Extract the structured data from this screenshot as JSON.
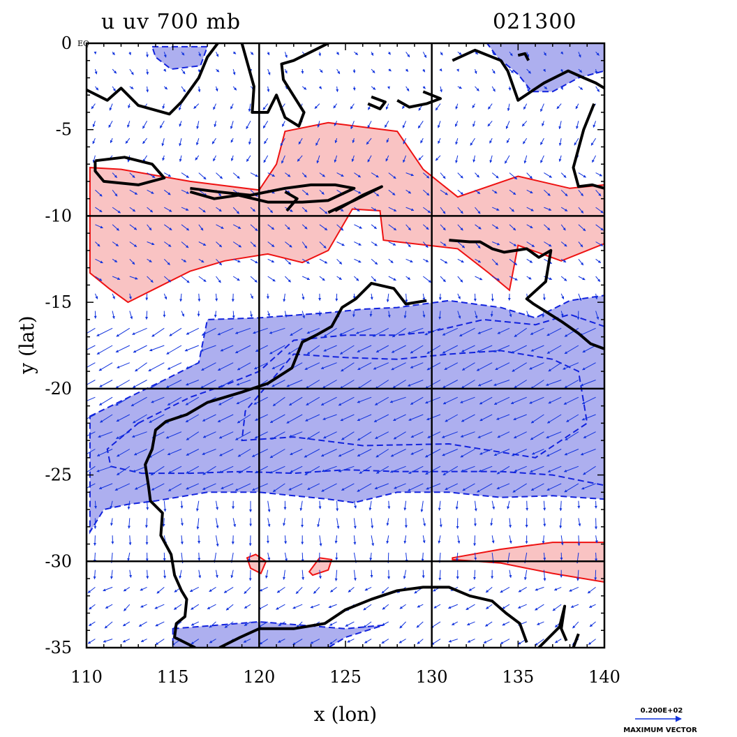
{
  "header": {
    "title_left": "u uv 700 mb",
    "title_right": "021300"
  },
  "axes": {
    "xlabel": "x (lon)",
    "ylabel": "y (lat)",
    "x_ticks": [
      "110",
      "115",
      "120",
      "125",
      "130",
      "135",
      "140"
    ],
    "y_ticks": [
      "0",
      "-5",
      "-10",
      "-15",
      "-20",
      "-25",
      "-30",
      "-35"
    ],
    "y_tick_suffix": "EQ",
    "x_range": [
      110,
      140
    ],
    "y_range": [
      -35,
      0
    ],
    "grid_lon": [
      120,
      130
    ],
    "grid_lat": [
      -10,
      -20,
      -30
    ]
  },
  "legend": {
    "vector_value": "0.200E+02",
    "vector_caption": "MAXIMUM VECTOR"
  },
  "colors": {
    "positive_fill": "#f9c3c3",
    "positive_line": "#ee1111",
    "negative_fill": "#adafef",
    "negative_line": "#1122dd",
    "coastline": "#000000",
    "vector": "#1133dd"
  },
  "map_data": {
    "projection": "lat-lon",
    "field": "u wind 700 mb with uv vectors",
    "positive_regions": [
      [
        [
          112,
          -7.3
        ],
        [
          116,
          -8
        ],
        [
          120,
          -8.5
        ],
        [
          121,
          -7
        ],
        [
          121.5,
          -5.1
        ],
        [
          124,
          -4.6
        ],
        [
          128,
          -5.1
        ],
        [
          129.5,
          -7.3
        ],
        [
          131.5,
          -8.9
        ],
        [
          135,
          -7.7
        ],
        [
          138,
          -8.4
        ],
        [
          140,
          -8.2
        ],
        [
          140,
          -11.6
        ],
        [
          137.5,
          -12.6
        ],
        [
          135,
          -11.7
        ],
        [
          134.5,
          -14.3
        ],
        [
          133.3,
          -13.3
        ],
        [
          131.5,
          -11.9
        ],
        [
          128,
          -11.5
        ],
        [
          127.2,
          -11.4
        ],
        [
          127,
          -9.7
        ],
        [
          125.4,
          -9.6
        ],
        [
          124,
          -12
        ],
        [
          122.5,
          -12.7
        ],
        [
          120.5,
          -12.2
        ],
        [
          118,
          -12.6
        ],
        [
          116,
          -13.2
        ],
        [
          114,
          -14.2
        ],
        [
          112.4,
          -15
        ],
        [
          111.3,
          -14.2
        ],
        [
          110.2,
          -13.3
        ],
        [
          110.2,
          -7.2
        ]
      ],
      [
        [
          131.2,
          -29.8
        ],
        [
          134,
          -29.3
        ],
        [
          137,
          -28.9
        ],
        [
          140,
          -28.9
        ],
        [
          140,
          -31.2
        ],
        [
          137,
          -30.7
        ],
        [
          134,
          -30.1
        ],
        [
          131.2,
          -29.9
        ]
      ],
      [
        [
          119.3,
          -29.8
        ],
        [
          119.8,
          -29.6
        ],
        [
          120.4,
          -30
        ],
        [
          120.1,
          -30.7
        ],
        [
          119.5,
          -30.4
        ]
      ],
      [
        [
          122.9,
          -30.6
        ],
        [
          123.5,
          -29.8
        ],
        [
          124.2,
          -29.9
        ],
        [
          124,
          -30.5
        ],
        [
          123.1,
          -30.8
        ]
      ]
    ],
    "negative_regions": [
      [
        [
          113.8,
          -0.2
        ],
        [
          117,
          -0.2
        ],
        [
          116.6,
          -1.3
        ],
        [
          114.9,
          -1.5
        ],
        [
          114,
          -0.8
        ]
      ],
      [
        [
          133.2,
          0
        ],
        [
          140,
          0
        ],
        [
          140,
          -1.6
        ],
        [
          138.5,
          -2
        ],
        [
          137,
          -2.8
        ],
        [
          135.8,
          -2.8
        ],
        [
          135,
          -1.8
        ],
        [
          133.8,
          -0.8
        ]
      ],
      [
        [
          110.2,
          -21.6
        ],
        [
          114.5,
          -19.5
        ],
        [
          116.5,
          -18.5
        ],
        [
          117,
          -16
        ],
        [
          120,
          -15.9
        ],
        [
          124,
          -15.6
        ],
        [
          126,
          -15.4
        ],
        [
          128,
          -15.3
        ],
        [
          131,
          -14.9
        ],
        [
          134,
          -15.3
        ],
        [
          136,
          -15.9
        ],
        [
          138,
          -14.9
        ],
        [
          140,
          -14.6
        ],
        [
          140,
          -26.4
        ],
        [
          137,
          -26.2
        ],
        [
          134,
          -26.3
        ],
        [
          131,
          -26
        ],
        [
          128,
          -26
        ],
        [
          125.5,
          -26.6
        ],
        [
          124,
          -26.4
        ],
        [
          120,
          -26
        ],
        [
          117,
          -26
        ],
        [
          114,
          -26.5
        ],
        [
          112.4,
          -26.7
        ],
        [
          111,
          -27
        ],
        [
          110.2,
          -28.3
        ]
      ],
      [
        [
          115,
          -33.9
        ],
        [
          120,
          -33.5
        ],
        [
          125,
          -33.9
        ],
        [
          127.2,
          -33.7
        ],
        [
          125,
          -34.4
        ],
        [
          124,
          -35
        ],
        [
          115,
          -35
        ],
        [
          115,
          -34.3
        ]
      ]
    ],
    "negative_inner_contours": [
      [
        [
          113,
          -22
        ],
        [
          116,
          -20.5
        ],
        [
          118,
          -19.8
        ],
        [
          120,
          -19
        ],
        [
          122,
          -17.2
        ],
        [
          125,
          -16.9
        ],
        [
          128,
          -16.9
        ],
        [
          130,
          -16.7
        ],
        [
          133,
          -16
        ],
        [
          136,
          -16.3
        ],
        [
          138,
          -15.7
        ],
        [
          140,
          -16.4
        ],
        [
          140,
          -25.6
        ],
        [
          137,
          -25
        ],
        [
          134,
          -24.8
        ],
        [
          131,
          -24.8
        ],
        [
          128,
          -24.8
        ],
        [
          125,
          -24.7
        ],
        [
          122,
          -24.9
        ],
        [
          119,
          -24.8
        ],
        [
          116,
          -24.9
        ],
        [
          113.2,
          -24.9
        ],
        [
          111.4,
          -24.5
        ],
        [
          111.2,
          -23.5
        ]
      ],
      [
        [
          122,
          -18
        ],
        [
          125,
          -18.2
        ],
        [
          128,
          -18.3
        ],
        [
          131,
          -18
        ],
        [
          134,
          -17.8
        ],
        [
          137,
          -18.3
        ],
        [
          138.5,
          -19
        ],
        [
          139,
          -22
        ],
        [
          136,
          -24
        ],
        [
          131,
          -23.2
        ],
        [
          126,
          -23.3
        ],
        [
          122,
          -22.8
        ],
        [
          119,
          -23
        ],
        [
          119.2,
          -21.3
        ]
      ]
    ],
    "coastlines": [
      [
        [
          110,
          -2.7
        ],
        [
          111.2,
          -3.3
        ],
        [
          112,
          -2.6
        ],
        [
          113,
          -3.6
        ],
        [
          114.8,
          -4.1
        ],
        [
          115.5,
          -3.4
        ],
        [
          116.5,
          -2
        ],
        [
          117,
          -0.8
        ],
        [
          117.6,
          0
        ]
      ],
      [
        [
          119,
          0
        ],
        [
          119.7,
          -2.5
        ],
        [
          119.6,
          -4
        ],
        [
          120.5,
          -4
        ],
        [
          121,
          -3
        ],
        [
          121.5,
          -4.3
        ],
        [
          122.3,
          -4.8
        ],
        [
          122.6,
          -4
        ],
        [
          121.4,
          -2.1
        ],
        [
          121.3,
          -1.2
        ],
        [
          122,
          -1
        ],
        [
          123,
          -0.5
        ],
        [
          125,
          0.5
        ]
      ],
      [
        [
          110.5,
          -6.8
        ],
        [
          112.2,
          -6.6
        ],
        [
          113.8,
          -7
        ],
        [
          114.5,
          -7.8
        ],
        [
          113,
          -8.2
        ],
        [
          111,
          -8
        ],
        [
          110.5,
          -7.4
        ],
        [
          110.5,
          -6.8
        ]
      ],
      [
        [
          116,
          -8.4
        ],
        [
          117.6,
          -8.6
        ],
        [
          119.5,
          -8.8
        ],
        [
          121.5,
          -8.4
        ],
        [
          123,
          -8.2
        ],
        [
          124.4,
          -8.2
        ],
        [
          125.5,
          -8.4
        ],
        [
          124,
          -9.1
        ],
        [
          122.5,
          -9.2
        ],
        [
          120.5,
          -9.2
        ],
        [
          118.8,
          -8.8
        ],
        [
          117.4,
          -9
        ],
        [
          116,
          -8.6
        ]
      ],
      [
        [
          124,
          -9.8
        ],
        [
          125.5,
          -9.1
        ],
        [
          127.1,
          -8.3
        ],
        [
          126,
          -8.8
        ],
        [
          124.4,
          -9.7
        ]
      ],
      [
        [
          131,
          -11.4
        ],
        [
          132.2,
          -11.5
        ],
        [
          132.8,
          -11.5
        ],
        [
          133.5,
          -11.9
        ],
        [
          134.2,
          -12.1
        ],
        [
          135.5,
          -11.9
        ],
        [
          136.2,
          -12.4
        ],
        [
          136.9,
          -12
        ],
        [
          136.6,
          -13.8
        ],
        [
          135.5,
          -14.8
        ],
        [
          135.9,
          -15.1
        ],
        [
          137.5,
          -16.1
        ],
        [
          138.5,
          -16.8
        ],
        [
          139.2,
          -17.4
        ],
        [
          140,
          -17.7
        ]
      ],
      [
        [
          129.7,
          -14.9
        ],
        [
          128.5,
          -15.1
        ],
        [
          127.8,
          -14.2
        ],
        [
          126.5,
          -13.9
        ],
        [
          125.6,
          -14.8
        ],
        [
          124.8,
          -15.3
        ],
        [
          124.2,
          -16.4
        ],
        [
          123.3,
          -16.9
        ],
        [
          122.5,
          -17.3
        ],
        [
          121.9,
          -18.8
        ],
        [
          120.5,
          -19.7
        ],
        [
          119,
          -20.2
        ],
        [
          117,
          -20.8
        ],
        [
          115.8,
          -21.5
        ],
        [
          114.6,
          -21.9
        ],
        [
          114,
          -22.4
        ],
        [
          113.8,
          -23.5
        ],
        [
          113.4,
          -24.4
        ],
        [
          113.6,
          -25.7
        ],
        [
          113.7,
          -26.5
        ],
        [
          114.1,
          -26.9
        ],
        [
          114.4,
          -27.2
        ],
        [
          114.3,
          -28.5
        ],
        [
          114.9,
          -29.6
        ],
        [
          115.1,
          -30.8
        ],
        [
          115.5,
          -31.7
        ],
        [
          115.8,
          -32.2
        ],
        [
          115.7,
          -33.2
        ],
        [
          115.2,
          -33.6
        ],
        [
          115.1,
          -34.4
        ],
        [
          116.3,
          -35
        ]
      ],
      [
        [
          117.7,
          -35
        ],
        [
          118.9,
          -34.4
        ],
        [
          120,
          -33.9
        ],
        [
          122,
          -33.9
        ],
        [
          123.8,
          -33.6
        ],
        [
          125,
          -32.8
        ],
        [
          126.5,
          -32.2
        ],
        [
          128,
          -31.7
        ],
        [
          129.5,
          -31.5
        ],
        [
          131,
          -31.5
        ],
        [
          132.2,
          -32
        ],
        [
          133.5,
          -32.3
        ],
        [
          134.3,
          -33
        ],
        [
          135.1,
          -33.6
        ],
        [
          135.5,
          -34.7
        ]
      ],
      [
        [
          136.2,
          -35
        ],
        [
          137.4,
          -33.8
        ],
        [
          137.7,
          -32.6
        ],
        [
          137.5,
          -33.9
        ],
        [
          137.8,
          -34.6
        ]
      ],
      [
        [
          138.5,
          -34.2
        ],
        [
          138.2,
          -35
        ]
      ],
      [
        [
          135,
          -0.7
        ],
        [
          135.4,
          -0.6
        ],
        [
          135.6,
          -1
        ]
      ],
      [
        [
          131.2,
          -1
        ],
        [
          132.5,
          -0.4
        ],
        [
          134,
          -1
        ],
        [
          134.4,
          -1.6
        ],
        [
          135,
          -3.3
        ],
        [
          136.5,
          -2.3
        ],
        [
          137.9,
          -1.6
        ],
        [
          138.8,
          -2
        ],
        [
          139.5,
          -2.3
        ],
        [
          140,
          -2.6
        ]
      ],
      [
        [
          140,
          -8.4
        ],
        [
          139.3,
          -8.2
        ],
        [
          138.5,
          -8.3
        ],
        [
          138.2,
          -7.2
        ],
        [
          138.8,
          -5
        ],
        [
          139.4,
          -3.5
        ]
      ],
      [
        [
          128,
          -3.3
        ],
        [
          128.7,
          -3.7
        ],
        [
          129.7,
          -3.5
        ],
        [
          130.5,
          -3.2
        ],
        [
          129.5,
          -2.8
        ]
      ],
      [
        [
          126.5,
          -3.1
        ],
        [
          127.3,
          -3.4
        ],
        [
          127,
          -3.8
        ],
        [
          126.3,
          -3.5
        ]
      ],
      [
        [
          121.5,
          -8.6
        ],
        [
          122.2,
          -9
        ],
        [
          121.6,
          -9.7
        ]
      ]
    ]
  }
}
